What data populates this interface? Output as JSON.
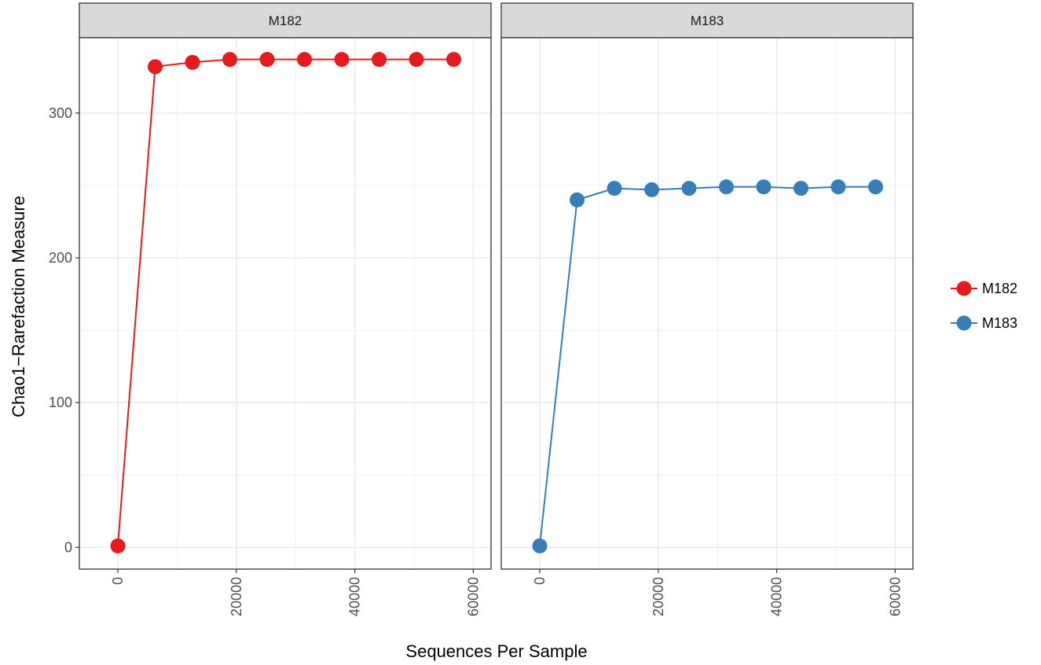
{
  "chart_data": {
    "type": "line",
    "xlabel": "Sequences Per Sample",
    "ylabel": "Chao1−Rarefaction Measure",
    "xlim": [
      -6500,
      63000
    ],
    "ylim": [
      -15,
      352
    ],
    "x_ticks": [
      0,
      20000,
      40000,
      60000
    ],
    "x_tick_labels": [
      "0",
      "20000",
      "40000",
      "60000"
    ],
    "x_minor": [
      10000,
      30000,
      50000
    ],
    "y_ticks": [
      0,
      100,
      200,
      300
    ],
    "y_tick_labels": [
      "0",
      "100",
      "200",
      "300"
    ],
    "y_minor": [
      50,
      150,
      250
    ],
    "grid": true,
    "legend_position": "right",
    "panels": [
      {
        "strip": "M182",
        "series": "M182",
        "color": "#e41a1c",
        "x": [
          1,
          6300,
          12600,
          18900,
          25200,
          31500,
          37800,
          44100,
          50400,
          56700
        ],
        "y": [
          1,
          332,
          335,
          337,
          337,
          337,
          337,
          337,
          337,
          337
        ]
      },
      {
        "strip": "M183",
        "series": "M183",
        "color": "#377eb8",
        "x": [
          1,
          6300,
          12600,
          18900,
          25200,
          31500,
          37800,
          44100,
          50400,
          56700
        ],
        "y": [
          1,
          240,
          248,
          247,
          248,
          249,
          249,
          248,
          249,
          249
        ]
      }
    ],
    "legend": [
      {
        "name": "M182",
        "color": "#e41a1c"
      },
      {
        "name": "M183",
        "color": "#377eb8"
      }
    ]
  }
}
